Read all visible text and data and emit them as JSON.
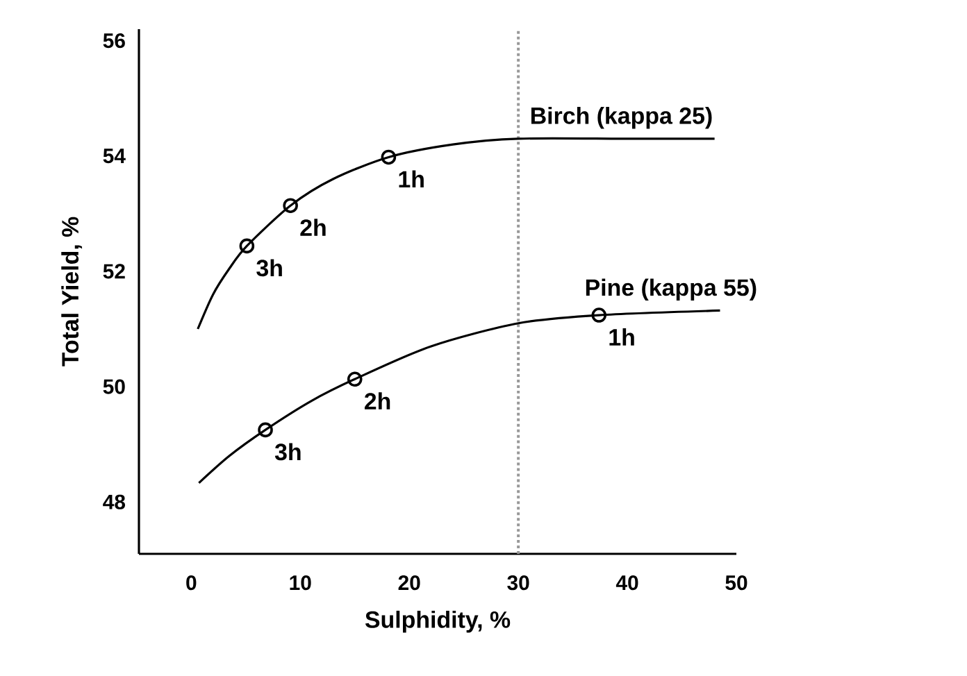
{
  "chart_data": {
    "type": "line",
    "xlabel": "Sulphidity, %",
    "ylabel": "Total Yield, %",
    "xlim": [
      -4.8,
      50
    ],
    "xticks": [
      0,
      10,
      20,
      30,
      40,
      50
    ],
    "ylim": [
      47.1,
      56.2
    ],
    "yticks": [
      48,
      50,
      52,
      54,
      56
    ],
    "series": [
      {
        "name": "Birch (kappa 25)",
        "color": "#000000",
        "x": [
          0.6,
          2,
          3.5,
          5.1,
          9.1,
          13,
          18.1,
          24,
          30,
          40,
          48
        ],
        "values": [
          51.0,
          51.6,
          52.05,
          52.44,
          53.14,
          53.6,
          53.98,
          54.2,
          54.3,
          54.3,
          54.3
        ]
      },
      {
        "name": "Pine (kappa 55)",
        "color": "#000000",
        "x": [
          0.7,
          3.5,
          6.8,
          11,
          15,
          22,
          30,
          37.4,
          48.5
        ],
        "values": [
          48.33,
          48.8,
          49.25,
          49.75,
          50.13,
          50.7,
          51.1,
          51.24,
          51.32
        ]
      },
      {
        "type": "scatter",
        "marker": "circle",
        "color": "#000000",
        "x": [
          5.1,
          9.1,
          18.1
        ],
        "values": [
          52.44,
          53.14,
          53.98
        ]
      },
      {
        "type": "scatter",
        "marker": "circle",
        "color": "#000000",
        "x": [
          6.8,
          15,
          37.4
        ],
        "values": [
          49.25,
          50.13,
          51.24
        ]
      }
    ],
    "annotations": [
      {
        "text": "3h",
        "x": 5.1,
        "y": 52.44
      },
      {
        "text": "2h",
        "x": 9.1,
        "y": 53.14
      },
      {
        "text": "1h",
        "x": 18.1,
        "y": 53.98
      },
      {
        "text": "3h",
        "x": 6.8,
        "y": 49.25
      },
      {
        "text": "2h",
        "x": 15,
        "y": 50.13
      },
      {
        "text": "1h",
        "x": 37.4,
        "y": 51.24
      }
    ],
    "ref_lines": [
      {
        "axis": "x",
        "value": 30,
        "color": "#999999",
        "line_style": "dotted"
      }
    ],
    "grid": false,
    "legend": false
  }
}
